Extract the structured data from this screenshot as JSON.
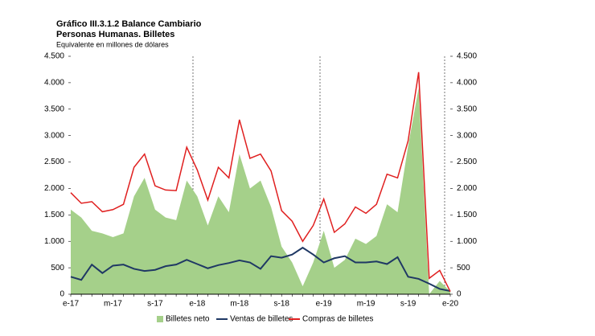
{
  "chart_data": {
    "type": "area-line",
    "title": "Gráfico III.3.1.2 Balance Cambiario",
    "subtitle": "Personas Humanas. Billetes",
    "y_axis_label": "Equivalente en millones de dólares",
    "categories": [
      "e-17",
      null,
      null,
      null,
      "m-17",
      null,
      null,
      null,
      "s-17",
      null,
      null,
      null,
      "e-18",
      null,
      null,
      null,
      "m-18",
      null,
      null,
      null,
      "s-18",
      null,
      null,
      null,
      "e-19",
      null,
      null,
      null,
      "m-19",
      null,
      null,
      null,
      "s-19",
      null,
      null,
      null,
      "e-20"
    ],
    "series": [
      {
        "name": "Billetes neto",
        "kind": "area",
        "color": "#a5d08a",
        "values": [
          1600,
          1450,
          1200,
          1150,
          1080,
          1150,
          1850,
          2200,
          1600,
          1450,
          1400,
          2150,
          1850,
          1300,
          1850,
          1550,
          2650,
          2000,
          2150,
          1650,
          900,
          600,
          150,
          600,
          1200,
          500,
          650,
          1050,
          950,
          1100,
          1700,
          1550,
          2800,
          3900,
          0,
          250,
          50
        ]
      },
      {
        "name": "Ventas de billetes",
        "kind": "line",
        "color": "#1f3864",
        "values": [
          330,
          270,
          560,
          400,
          540,
          560,
          480,
          440,
          460,
          530,
          560,
          650,
          570,
          490,
          550,
          590,
          640,
          600,
          480,
          720,
          690,
          750,
          880,
          750,
          600,
          680,
          720,
          600,
          600,
          620,
          570,
          700,
          330,
          290,
          200,
          100,
          60
        ]
      },
      {
        "name": "Compras de billetes",
        "kind": "line",
        "color": "#e02020",
        "values": [
          1920,
          1720,
          1750,
          1560,
          1600,
          1700,
          2400,
          2650,
          2050,
          1970,
          1960,
          2780,
          2350,
          1780,
          2400,
          2200,
          3300,
          2570,
          2650,
          2330,
          1580,
          1380,
          1000,
          1300,
          1800,
          1170,
          1330,
          1650,
          1530,
          1700,
          2270,
          2200,
          2900,
          4200,
          300,
          450,
          50
        ]
      }
    ],
    "ylim": [
      0,
      4500
    ],
    "yticks": [
      0,
      500,
      {
        "value": 1000,
        "label": "1.000"
      },
      {
        "value": 1500,
        "label": "1.500"
      },
      {
        "value": 2000,
        "label": "2.000"
      },
      {
        "value": 2500,
        "label": "2.500"
      },
      {
        "value": 3000,
        "label": "3.000"
      },
      {
        "value": 3500,
        "label": "3.500"
      },
      {
        "value": 4000,
        "label": "4.000"
      },
      {
        "value": 4500,
        "label": "4.500"
      }
    ],
    "y2lim": [
      0,
      4500
    ],
    "y2ticks": [
      0,
      500,
      {
        "value": 1000,
        "label": "1.000"
      },
      {
        "value": 1500,
        "label": "1.500"
      },
      {
        "value": 2000,
        "label": "2.000"
      },
      {
        "value": 2500,
        "label": "2.500"
      },
      {
        "value": 3000,
        "label": "3.000"
      },
      {
        "value": 3500,
        "label": "3.500"
      },
      {
        "value": 4000,
        "label": "4.000"
      },
      {
        "value": 4500,
        "label": "4.500"
      }
    ],
    "legend": "bottom"
  }
}
